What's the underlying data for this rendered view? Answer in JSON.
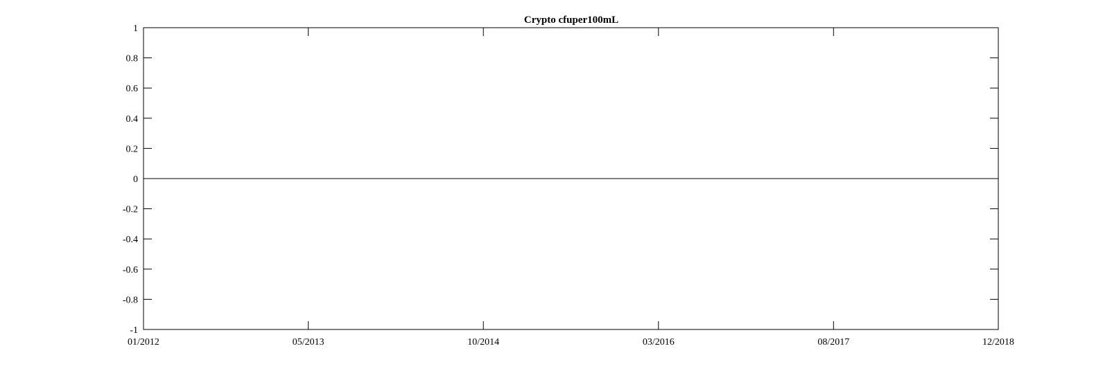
{
  "chart_data": {
    "type": "line",
    "title": "Crypto cfuper100mL",
    "xlabel": "",
    "ylabel": "",
    "x_axis_type": "date",
    "x_ticks": [
      "01/2012",
      "05/2013",
      "10/2014",
      "03/2016",
      "08/2017",
      "12/2018"
    ],
    "xlim": [
      "01/2012",
      "12/2018"
    ],
    "ylim": [
      -1,
      1
    ],
    "y_ticks": [
      1,
      0.8,
      0.6,
      0.4,
      0.2,
      0,
      -0.2,
      -0.4,
      -0.6,
      -0.8,
      -1
    ],
    "y_tick_labels": [
      "1",
      "0.8",
      "0.6",
      "0.4",
      "0.2",
      "0",
      "-0.2",
      "-0.4",
      "-0.6",
      "-0.8",
      "-1"
    ],
    "grid": false,
    "series": [
      {
        "x": [
          "01/2012",
          "12/2018"
        ],
        "values": [
          0,
          0
        ],
        "color": "#000000"
      }
    ]
  }
}
